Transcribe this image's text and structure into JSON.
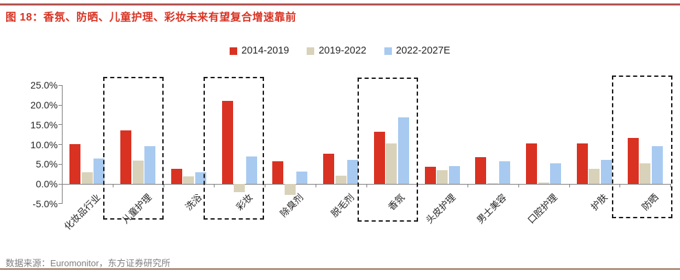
{
  "page": {
    "title": "图 18：香氛、防晒、儿童护理、彩妆未来有望复合增速靠前",
    "source_note": "数据来源：Euromonitor，东方证券研究所"
  },
  "chart_data": {
    "type": "bar",
    "title": "香氛、防晒、儿童护理、彩妆未来有望复合增速靠前",
    "categories": [
      "化妆品行业",
      "儿童护理",
      "洗浴",
      "彩妆",
      "除臭剂",
      "脱毛剂",
      "香氛",
      "头皮护理",
      "男士美容",
      "口腔护理",
      "护肤",
      "防晒"
    ],
    "series": [
      {
        "name": "2014-2019",
        "color": "#d93222",
        "values": [
          10.1,
          13.6,
          3.8,
          21.0,
          5.8,
          7.7,
          13.3,
          4.3,
          6.8,
          10.3,
          10.3,
          11.7
        ]
      },
      {
        "name": "2019-2022",
        "color": "#d9d2ba",
        "values": [
          3.0,
          6.0,
          1.9,
          -2.0,
          -2.8,
          2.1,
          10.3,
          3.5,
          0.2,
          0.3,
          3.9,
          5.2
        ]
      },
      {
        "name": "2022-2027E",
        "color": "#a8caf0",
        "values": [
          6.4,
          9.6,
          3.0,
          6.9,
          3.2,
          6.1,
          16.8,
          4.6,
          5.8,
          5.2,
          6.1,
          9.6
        ]
      }
    ],
    "unit": "%",
    "ylim": [
      -5,
      25
    ],
    "ytick_values": [
      25,
      20,
      15,
      10,
      5,
      0,
      -5
    ],
    "ytick_labels": [
      "25.0%",
      "20.0%",
      "15.0%",
      "10.0%",
      "5.0%",
      "0.0%",
      "-5.0%"
    ],
    "grid": false,
    "legend_position": "top",
    "highlighted_categories": [
      "儿童护理",
      "彩妆",
      "香氛",
      "防晒"
    ]
  }
}
